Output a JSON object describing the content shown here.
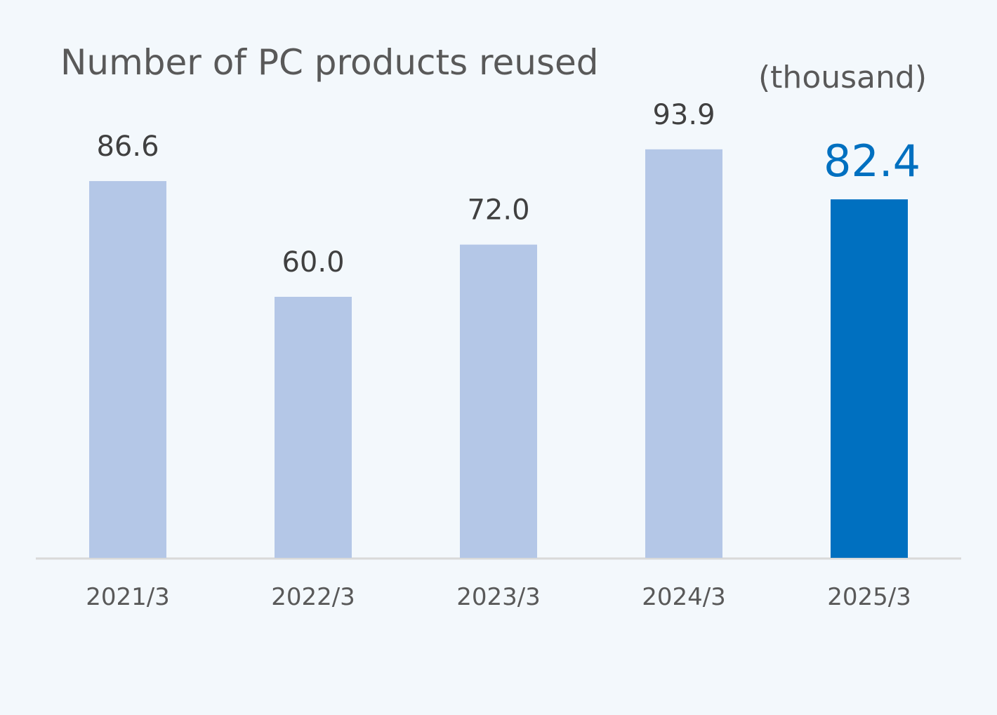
{
  "chart_data": {
    "type": "bar",
    "title": "Number of PC products reused",
    "unit_label": "(thousand)",
    "xlabel": "",
    "ylabel": "",
    "categories": [
      "2021/3",
      "2022/3",
      "2023/3",
      "2024/3",
      "2025/3"
    ],
    "values": [
      86.6,
      60.0,
      72.0,
      93.9,
      82.4
    ],
    "data_labels": [
      "86.6",
      "60.0",
      "72.0",
      "93.9",
      "82.4"
    ],
    "highlight_index": 4,
    "ylim": [
      0,
      100
    ],
    "grid": false,
    "colors": {
      "bar": "#b4c7e7",
      "highlight": "#0070c0",
      "label": "#404040",
      "axis_text": "#595959",
      "axis_line": "#d9d9d9"
    }
  }
}
